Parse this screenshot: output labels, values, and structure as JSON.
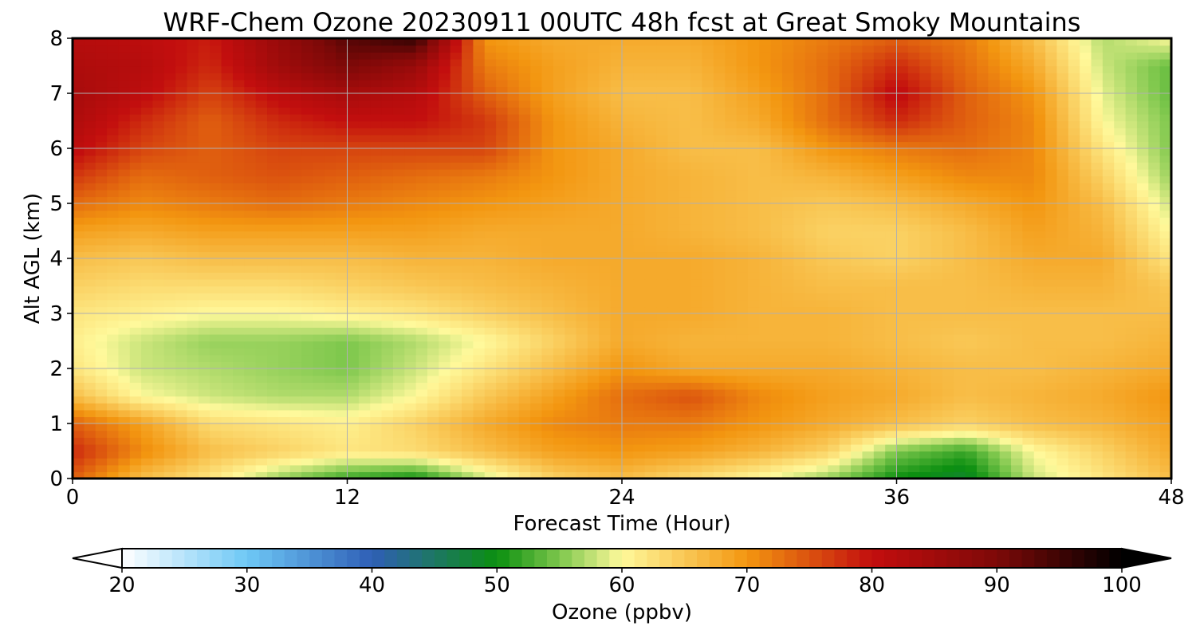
{
  "chart_data": {
    "type": "heatmap",
    "title": "WRF-Chem Ozone  20230911 00UTC 48h fcst at Great Smoky Mountains",
    "xlabel": "Forecast Time (Hour)",
    "ylabel": "Alt AGL (km)",
    "xlim": [
      0,
      48
    ],
    "ylim": [
      0,
      8
    ],
    "x_ticks": [
      0,
      12,
      24,
      36,
      48
    ],
    "y_ticks": [
      0,
      1,
      2,
      3,
      4,
      5,
      6,
      7,
      8
    ],
    "grid": true,
    "x_hours": [
      0,
      3,
      6,
      9,
      12,
      15,
      18,
      21,
      24,
      27,
      30,
      33,
      36,
      39,
      42,
      45,
      48
    ],
    "alt_km": [
      0,
      0.5,
      1,
      1.5,
      2,
      2.5,
      3,
      3.5,
      4,
      4.5,
      5,
      5.5,
      6,
      6.5,
      7,
      7.5,
      8
    ],
    "z_ppbv": [
      [
        74,
        66,
        62,
        56,
        52,
        50,
        58,
        64,
        66,
        63,
        60,
        56,
        50,
        48,
        58,
        62,
        66
      ],
      [
        78,
        71,
        66,
        64,
        62,
        63,
        66,
        69,
        70,
        69,
        67,
        64,
        55,
        52,
        60,
        64,
        68
      ],
      [
        74,
        69,
        63,
        62,
        61,
        64,
        68,
        71,
        72,
        72,
        70,
        68,
        66,
        64,
        66,
        67,
        69
      ],
      [
        66,
        60,
        58,
        57,
        57,
        60,
        65,
        69,
        73,
        75,
        71,
        69,
        68,
        66,
        67,
        68,
        70
      ],
      [
        62,
        58,
        57,
        56,
        55,
        58,
        62,
        66,
        70,
        68,
        68,
        68,
        67,
        66,
        66,
        67,
        68
      ],
      [
        61,
        58,
        56,
        56,
        55,
        57,
        60,
        64,
        68,
        67,
        67,
        67,
        66,
        65,
        66,
        66,
        67
      ],
      [
        62,
        61,
        60,
        60,
        61,
        62,
        64,
        66,
        68,
        68,
        67,
        67,
        66,
        66,
        66,
        66,
        66
      ],
      [
        64,
        63,
        63,
        63,
        64,
        65,
        66,
        67,
        68,
        68,
        67,
        66,
        66,
        66,
        67,
        67,
        65
      ],
      [
        66,
        65,
        66,
        66,
        66,
        67,
        67,
        68,
        68,
        68,
        67,
        65,
        64,
        66,
        68,
        68,
        62
      ],
      [
        69,
        68,
        69,
        69,
        69,
        69,
        68,
        68,
        68,
        67,
        66,
        64,
        64,
        66,
        69,
        67,
        60
      ],
      [
        73,
        71,
        72,
        73,
        72,
        71,
        70,
        69,
        68,
        67,
        66,
        65,
        66,
        68,
        70,
        66,
        58
      ],
      [
        77,
        73,
        74,
        75,
        74,
        73,
        72,
        70,
        68,
        67,
        66,
        67,
        69,
        71,
        71,
        64,
        56
      ],
      [
        81,
        76,
        74,
        76,
        76,
        76,
        76,
        70,
        68,
        66,
        66,
        70,
        72,
        73,
        71,
        62,
        55
      ],
      [
        83,
        78,
        74,
        78,
        80,
        80,
        77,
        70,
        67,
        66,
        68,
        73,
        78,
        74,
        71,
        60,
        55
      ],
      [
        84,
        81,
        76,
        81,
        84,
        82,
        74,
        69,
        66,
        66,
        69,
        73,
        81,
        74,
        70,
        59,
        54
      ],
      [
        83,
        82,
        78,
        85,
        90,
        86,
        72,
        69,
        67,
        67,
        70,
        73,
        78,
        73,
        68,
        58,
        54
      ],
      [
        82,
        81,
        79,
        86,
        93,
        96,
        70,
        68,
        68,
        68,
        70,
        72,
        74,
        72,
        66,
        57,
        60
      ]
    ],
    "colorbar": {
      "label": "Ozone  (ppbv)",
      "min": 20,
      "max": 100,
      "ticks": [
        20,
        30,
        40,
        50,
        60,
        70,
        80,
        90,
        100
      ],
      "extend": "both",
      "color_stops": [
        {
          "v": 20,
          "c": "#ffffff"
        },
        {
          "v": 30,
          "c": "#6ec8f6"
        },
        {
          "v": 40,
          "c": "#2f5fb6"
        },
        {
          "v": 50,
          "c": "#0b8f10"
        },
        {
          "v": 55,
          "c": "#7dc74c"
        },
        {
          "v": 60,
          "c": "#fff99b"
        },
        {
          "v": 70,
          "c": "#f39610"
        },
        {
          "v": 80,
          "c": "#c30e0e"
        },
        {
          "v": 90,
          "c": "#7d0908"
        },
        {
          "v": 100,
          "c": "#000000"
        }
      ]
    }
  }
}
